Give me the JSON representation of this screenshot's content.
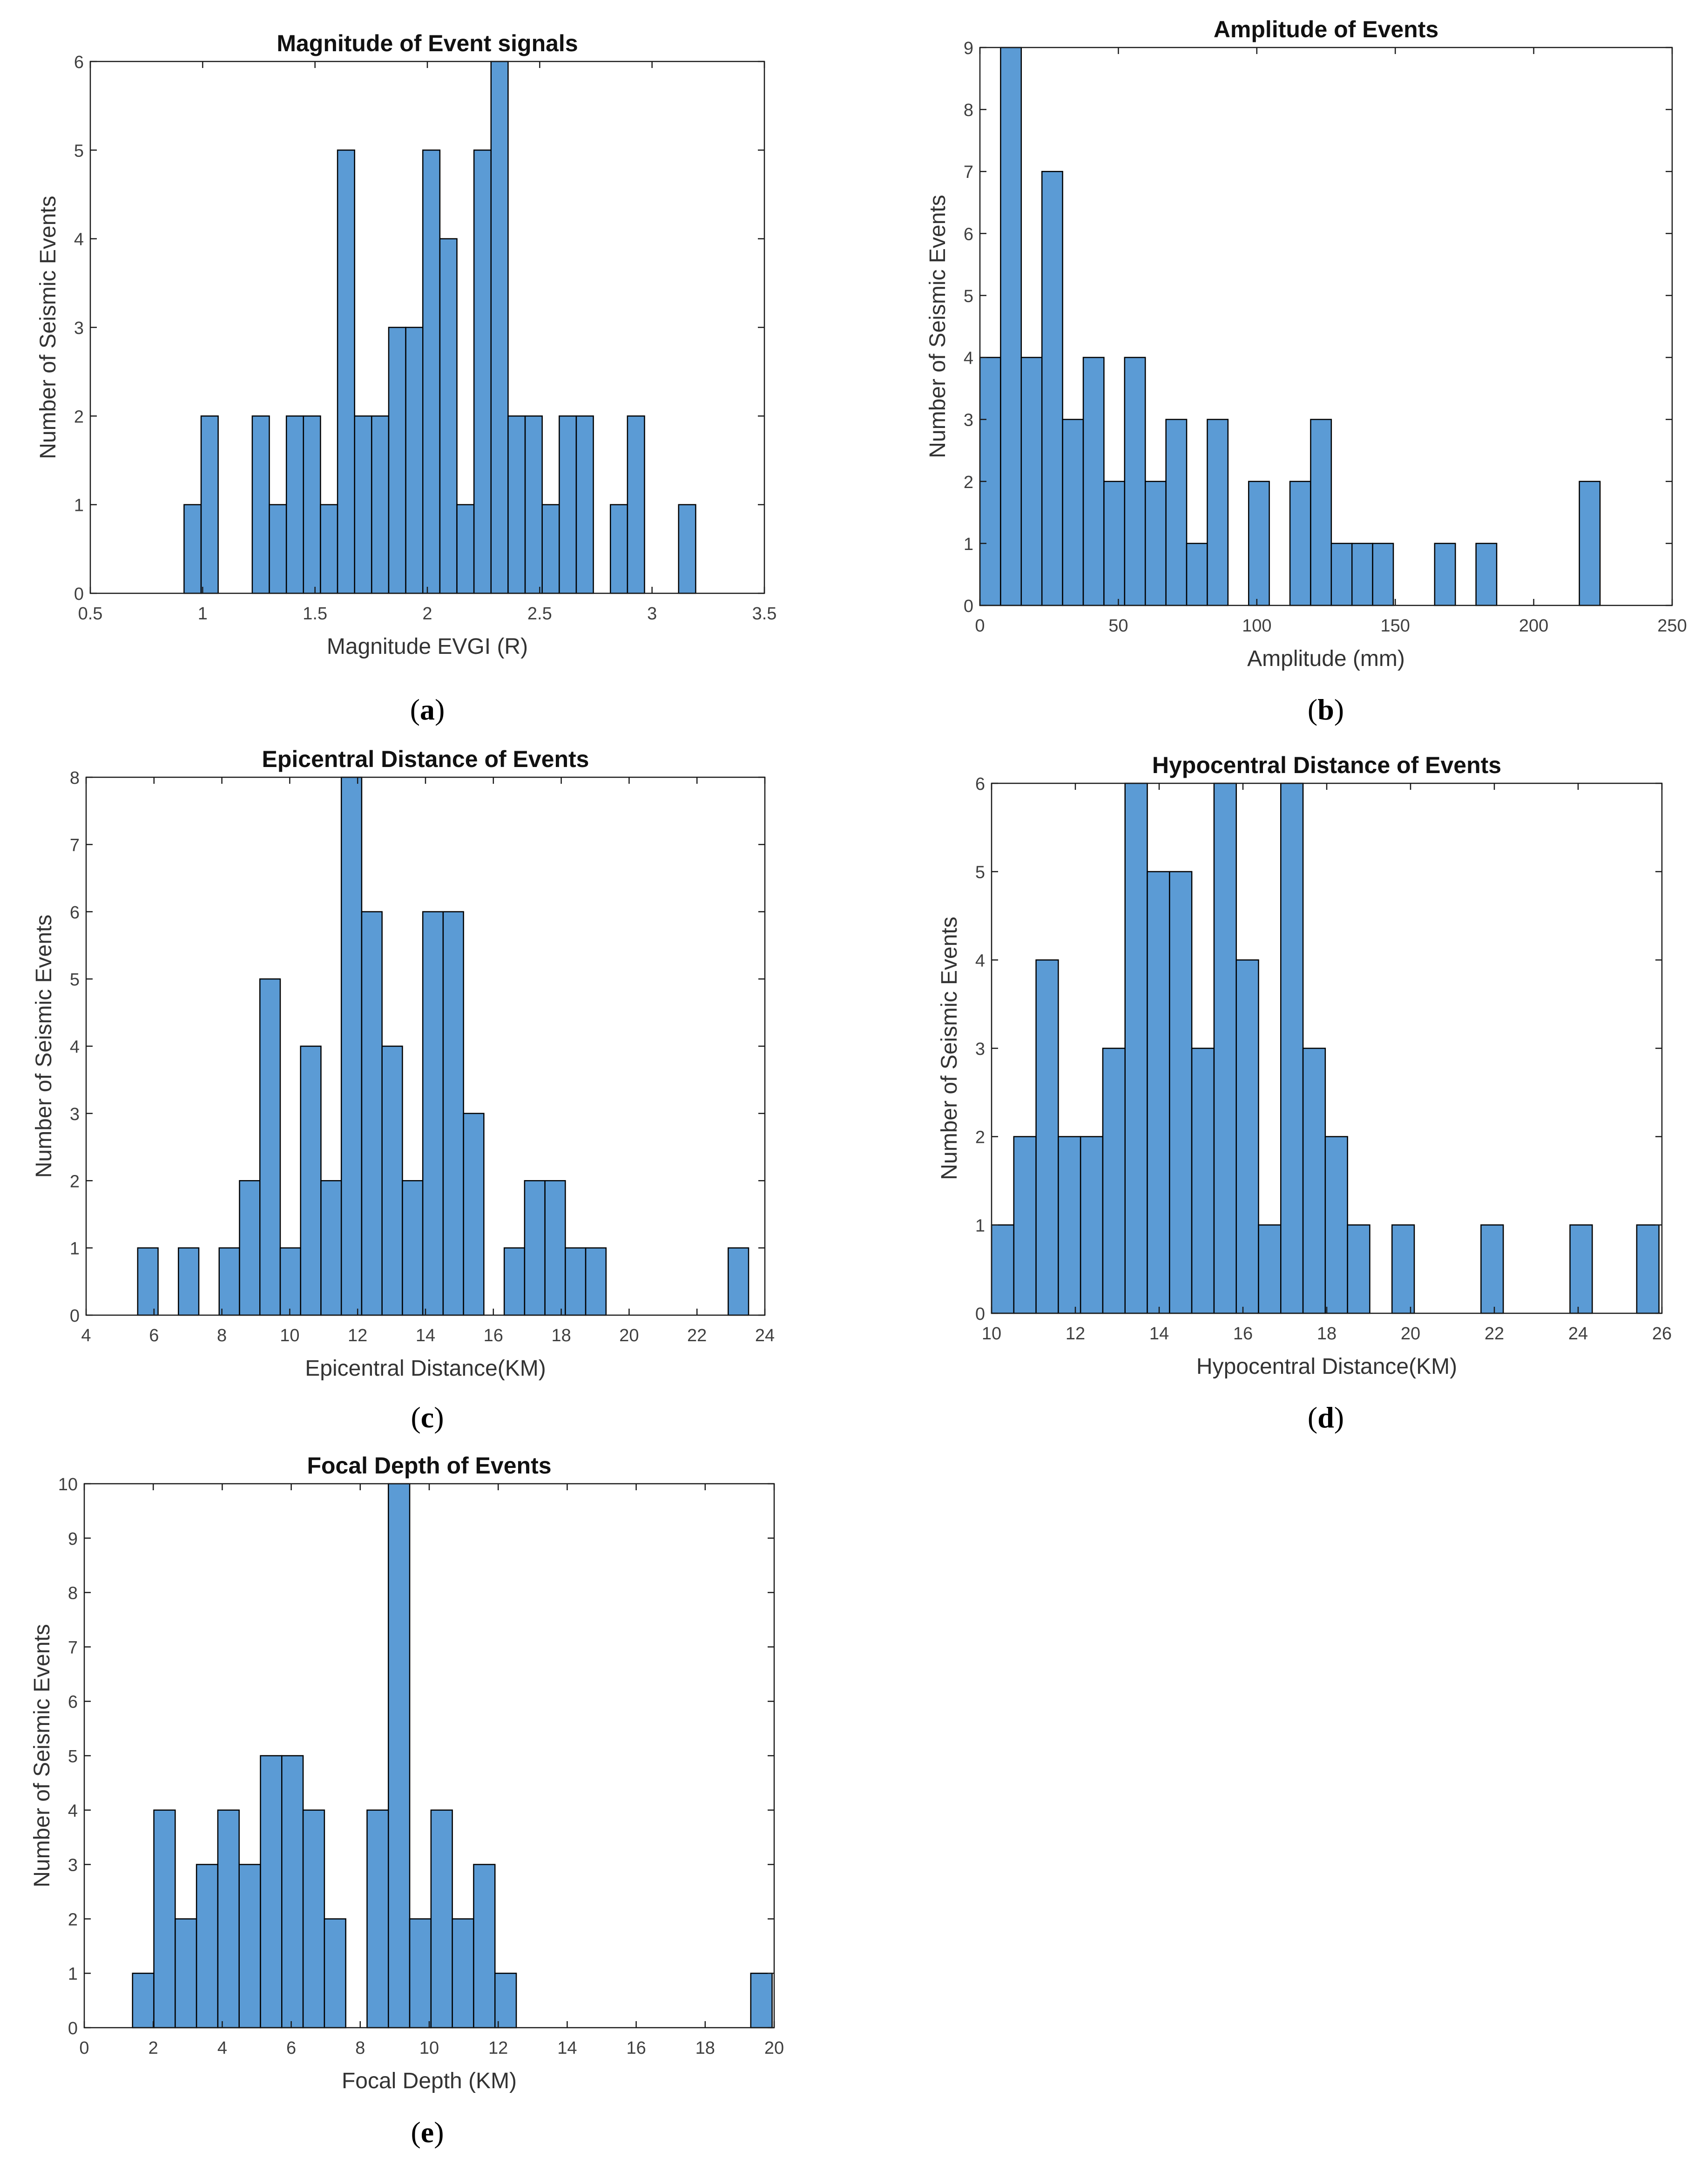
{
  "chart_data": [
    {
      "id": "a",
      "type": "bar",
      "title": "Magnitude of Event signals",
      "xlabel": "Magnitude EVGI (R)",
      "ylabel": "Number of Seismic Events",
      "caption": "a",
      "xlim": [
        0.5,
        3.5
      ],
      "ylim": [
        0,
        6
      ],
      "xticks": [
        0.5,
        1,
        1.5,
        2,
        2.5,
        3,
        3.5
      ],
      "xtick_labels": [
        "0.5",
        "1",
        "1.5",
        "2",
        "2.5",
        "3",
        "3.5"
      ],
      "yticks": [
        0,
        1,
        2,
        3,
        4,
        5,
        6
      ],
      "ytick_labels": [
        "0",
        "1",
        "2",
        "3",
        "4",
        "5",
        "6"
      ],
      "bin_start": 0.9172,
      "bin_width": 0.0759,
      "values": [
        1,
        2,
        0,
        0,
        2,
        1,
        2,
        2,
        1,
        5,
        2,
        2,
        3,
        3,
        5,
        4,
        1,
        5,
        6,
        2,
        2,
        1,
        2,
        2,
        0,
        1,
        2,
        0,
        0,
        1
      ]
    },
    {
      "id": "b",
      "type": "bar",
      "title": "Amplitude of Events",
      "xlabel": "Amplitude (mm)",
      "ylabel": "Number of Seismic Events",
      "caption": "b",
      "xlim": [
        0,
        250
      ],
      "ylim": [
        0,
        9
      ],
      "xticks": [
        0,
        50,
        100,
        150,
        200,
        250
      ],
      "xtick_labels": [
        "0",
        "50",
        "100",
        "150",
        "200",
        "250"
      ],
      "yticks": [
        0,
        1,
        2,
        3,
        4,
        5,
        6,
        7,
        8,
        9
      ],
      "ytick_labels": [
        "0",
        "1",
        "2",
        "3",
        "4",
        "5",
        "6",
        "7",
        "8",
        "9"
      ],
      "bin_start": 0,
      "bin_width": 7.465,
      "values": [
        4,
        9,
        4,
        7,
        3,
        4,
        2,
        4,
        2,
        3,
        1,
        3,
        0,
        2,
        0,
        2,
        3,
        1,
        1,
        1,
        0,
        0,
        1,
        0,
        1,
        0,
        0,
        0,
        0,
        2
      ]
    },
    {
      "id": "c",
      "type": "bar",
      "title": "Epicentral Distance of Events",
      "xlabel": "Epicentral Distance(KM)",
      "ylabel": "Number of Seismic Events",
      "caption": "c",
      "xlim": [
        4,
        24
      ],
      "ylim": [
        0,
        8
      ],
      "xticks": [
        4,
        6,
        8,
        10,
        12,
        14,
        16,
        18,
        20,
        22,
        24
      ],
      "xtick_labels": [
        "4",
        "6",
        "8",
        "10",
        "12",
        "14",
        "16",
        "18",
        "20",
        "22",
        "24"
      ],
      "yticks": [
        0,
        1,
        2,
        3,
        4,
        5,
        6,
        7,
        8
      ],
      "ytick_labels": [
        "0",
        "1",
        "2",
        "3",
        "4",
        "5",
        "6",
        "7",
        "8"
      ],
      "bin_start": 5.52,
      "bin_width": 0.6,
      "values": [
        1,
        0,
        1,
        0,
        1,
        2,
        5,
        1,
        4,
        2,
        8,
        6,
        4,
        2,
        6,
        6,
        3,
        0,
        1,
        2,
        2,
        1,
        1,
        0,
        0,
        0,
        0,
        0,
        0,
        1
      ]
    },
    {
      "id": "d",
      "type": "bar",
      "title": "Hypocentral Distance of Events",
      "xlabel": "Hypocentral Distance(KM)",
      "ylabel": "Number of Seismic Events",
      "caption": "d",
      "xlim": [
        10,
        26
      ],
      "ylim": [
        0,
        6
      ],
      "xticks": [
        10,
        12,
        14,
        16,
        18,
        20,
        22,
        24,
        26
      ],
      "xtick_labels": [
        "10",
        "12",
        "14",
        "16",
        "18",
        "20",
        "22",
        "24",
        "26"
      ],
      "yticks": [
        0,
        1,
        2,
        3,
        4,
        5,
        6
      ],
      "ytick_labels": [
        "0",
        "1",
        "2",
        "3",
        "4",
        "5",
        "6"
      ],
      "bin_start": 10.0,
      "bin_width": 0.531,
      "values": [
        1,
        2,
        4,
        2,
        2,
        3,
        6,
        5,
        5,
        3,
        6,
        4,
        1,
        6,
        3,
        2,
        1,
        0,
        1,
        0,
        0,
        0,
        1,
        0,
        0,
        0,
        1,
        0,
        0,
        1
      ]
    },
    {
      "id": "e",
      "type": "bar",
      "title": "Focal Depth of Events",
      "xlabel": "Focal Depth (KM)",
      "ylabel": "Number of Seismic Events",
      "caption": "e",
      "xlim": [
        0,
        20
      ],
      "ylim": [
        0,
        10
      ],
      "xticks": [
        0,
        2,
        4,
        6,
        8,
        10,
        12,
        14,
        16,
        18,
        20
      ],
      "xtick_labels": [
        "0",
        "2",
        "4",
        "6",
        "8",
        "10",
        "12",
        "14",
        "16",
        "18",
        "20"
      ],
      "yticks": [
        0,
        1,
        2,
        3,
        4,
        5,
        6,
        7,
        8,
        9,
        10
      ],
      "ytick_labels": [
        "0",
        "1",
        "2",
        "3",
        "4",
        "5",
        "6",
        "7",
        "8",
        "9",
        "10"
      ],
      "bin_start": 1.4,
      "bin_width": 0.618,
      "values": [
        1,
        4,
        2,
        3,
        4,
        3,
        5,
        5,
        4,
        2,
        0,
        4,
        10,
        2,
        4,
        2,
        3,
        1,
        0,
        0,
        0,
        0,
        0,
        0,
        0,
        0,
        0,
        0,
        0,
        1
      ]
    }
  ]
}
